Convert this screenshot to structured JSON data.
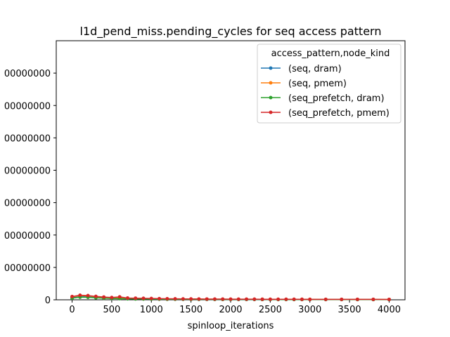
{
  "chart_data": {
    "type": "line",
    "title": "l1d_pend_miss.pending_cycles for seq access pattern",
    "xlabel": "spinloop_iterations",
    "ylabel": "",
    "xlim": [
      -200,
      4200
    ],
    "ylim": [
      0,
      16000000000
    ],
    "xticks": [
      0,
      500,
      1000,
      1500,
      2000,
      2500,
      3000,
      3500,
      4000
    ],
    "xtick_labels": [
      "0",
      "500",
      "1000",
      "1500",
      "2000",
      "2500",
      "3000",
      "3500",
      "4000"
    ],
    "yticks": [
      0,
      2000000000,
      4000000000,
      6000000000,
      8000000000,
      10000000000,
      12000000000,
      14000000000
    ],
    "ytick_labels": [
      "0",
      "00000000",
      "00000000",
      "00000000",
      "00000000",
      "00000000",
      "00000000",
      "00000000"
    ],
    "grid": false,
    "legend": {
      "title": "access_pattern,node_kind",
      "placement": "top-right"
    },
    "x": [
      0,
      100,
      200,
      300,
      400,
      500,
      600,
      700,
      800,
      900,
      1000,
      1100,
      1200,
      1300,
      1400,
      1500,
      1600,
      1700,
      1800,
      1900,
      2000,
      2100,
      2200,
      2300,
      2400,
      2500,
      2600,
      2700,
      2800,
      2900,
      3000,
      3200,
      3400,
      3600,
      3800,
      4000
    ],
    "series": [
      {
        "name": "(seq, dram)",
        "color": "#1f77b4",
        "values": [
          120000000,
          190000000,
          180000000,
          140000000,
          110000000,
          90000000,
          80000000,
          70000000,
          60000000,
          55000000,
          50000000,
          45000000,
          40000000,
          38000000,
          35000000,
          33000000,
          31000000,
          30000000,
          28000000,
          27000000,
          26000000,
          25000000,
          24000000,
          23000000,
          22000000,
          21000000,
          20000000,
          20000000,
          19000000,
          19000000,
          18000000,
          17000000,
          16000000,
          16000000,
          15000000,
          15000000
        ]
      },
      {
        "name": "(seq, pmem)",
        "color": "#ff7f0e",
        "values": [
          180000000,
          260000000,
          240000000,
          190000000,
          150000000,
          125000000,
          110000000,
          95000000,
          85000000,
          75000000,
          68000000,
          62000000,
          56000000,
          52000000,
          48000000,
          45000000,
          42000000,
          40000000,
          38000000,
          36000000,
          34000000,
          33000000,
          32000000,
          31000000,
          30000000,
          29000000,
          28000000,
          27000000,
          26000000,
          26000000,
          25000000,
          24000000,
          23000000,
          22000000,
          21000000,
          21000000
        ]
      },
      {
        "name": "(seq_prefetch, dram)",
        "color": "#2ca02c",
        "values": [
          100000000,
          160000000,
          150000000,
          120000000,
          95000000,
          80000000,
          70000000,
          60000000,
          52000000,
          47000000,
          42000000,
          38000000,
          35000000,
          33000000,
          31000000,
          29000000,
          27000000,
          26000000,
          25000000,
          24000000,
          23000000,
          22000000,
          21000000,
          20000000,
          19000000,
          19000000,
          18000000,
          18000000,
          17000000,
          17000000,
          16000000,
          15000000,
          15000000,
          14000000,
          14000000,
          13000000
        ]
      },
      {
        "name": "(seq_prefetch, pmem)",
        "color": "#d62728",
        "values": [
          200000000,
          280000000,
          260000000,
          210000000,
          170000000,
          140000000,
          180000000,
          110000000,
          100000000,
          90000000,
          80000000,
          72000000,
          65000000,
          60000000,
          56000000,
          52000000,
          49000000,
          46000000,
          44000000,
          42000000,
          40000000,
          38000000,
          37000000,
          36000000,
          35000000,
          34000000,
          33000000,
          32000000,
          31000000,
          30000000,
          29000000,
          28000000,
          27000000,
          26000000,
          25000000,
          24000000
        ]
      }
    ]
  }
}
